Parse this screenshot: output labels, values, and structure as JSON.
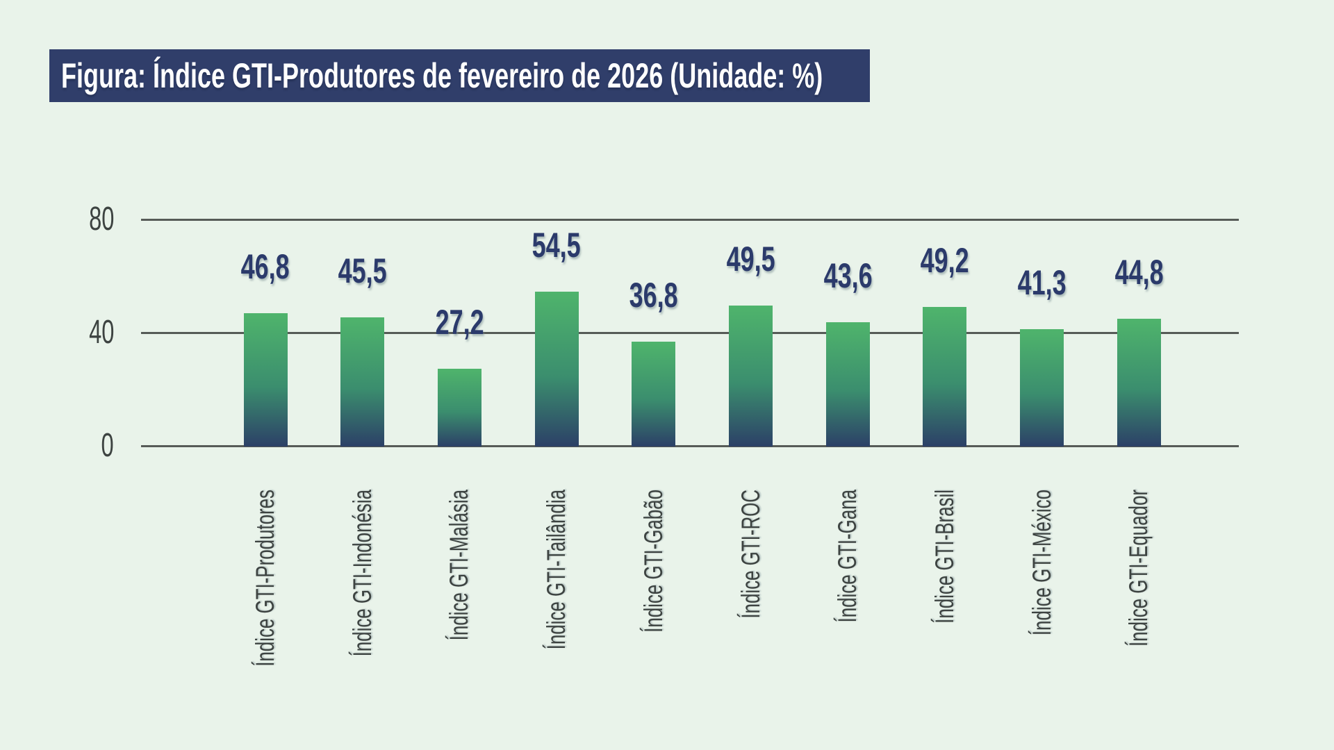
{
  "title": {
    "text": "Figura: Índice GTI-Produtores de fevereiro de 2026 (Unidade: %)"
  },
  "chart_data": {
    "type": "bar",
    "title": "Figura: Índice GTI-Produtores de fevereiro de 2026 (Unidade: %)",
    "unit": "%",
    "categories": [
      "Índice GTI-Produtores",
      "Índice GTI-Indonésia",
      "Índice GTI-Malásia",
      "Índice GTI-Tailândia",
      "Índice GTI-Gabão",
      "Índice GTI-ROC",
      "Índice GTI-Gana",
      "Índice GTI-Brasil",
      "Índice GTI-México",
      "Índice GTI-Equador"
    ],
    "values": [
      46.8,
      45.5,
      27.2,
      54.5,
      36.8,
      49.5,
      43.6,
      49.2,
      41.3,
      44.8
    ],
    "value_labels": [
      "46,8",
      "45,5",
      "27,2",
      "54,5",
      "36,8",
      "49,5",
      "43,6",
      "49,2",
      "41,3",
      "44,8"
    ],
    "xlabel": "",
    "ylabel": "",
    "yticks": [
      0,
      40,
      80
    ],
    "ylim": [
      0,
      80
    ],
    "grid": true,
    "legend": false,
    "colors": {
      "background": "#e9f3ea",
      "banner_bg": "#303e6a",
      "title_text": "#ffffff",
      "bar_top": "#4fb46c",
      "bar_mid": "#3b8e6e",
      "bar_bottom": "#2c4067",
      "value_label": "#2b3a6b",
      "axis_text": "#3d4341",
      "gridline": "#565b57"
    }
  }
}
